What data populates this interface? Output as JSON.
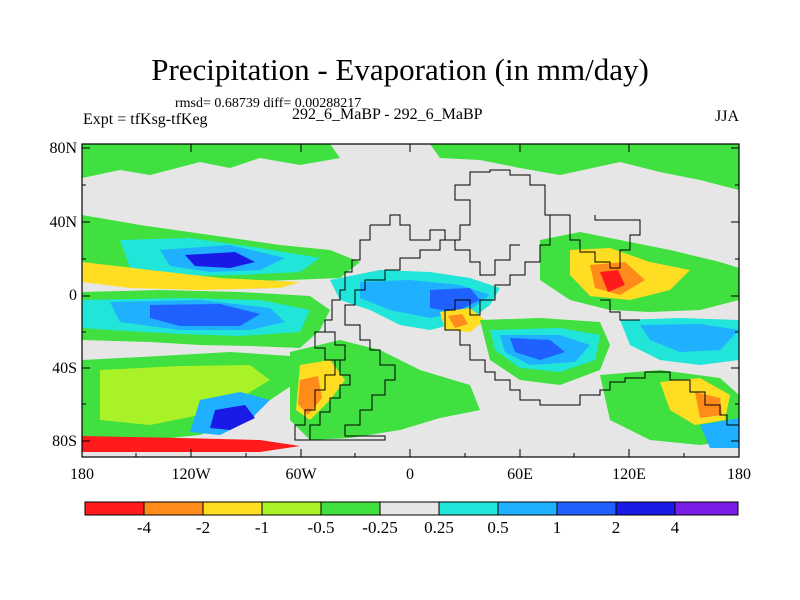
{
  "title": "Precipitation - Evaporation (in mm/day)",
  "stats": "rmsd= 0.68739 diff= 0.00288217",
  "experiment": "Expt = tfKsg-tfKeg",
  "case_label": "292_6_MaBP - 292_6_MaBP",
  "season": "JJA",
  "y_ticks": [
    "80N",
    "40N",
    "0",
    "40S",
    "80S"
  ],
  "x_ticks": [
    "180",
    "120W",
    "60W",
    "0",
    "60E",
    "120E",
    "180"
  ],
  "colorbar": {
    "labels": [
      "-4",
      "-2",
      "-1",
      "-0.5",
      "-0.25",
      "0.25",
      "0.5",
      "1",
      "2",
      "4"
    ],
    "colors": [
      "#ff1b1b",
      "#ff8c1a",
      "#ffdd22",
      "#a8f227",
      "#3fe03f",
      "#e6e6e6",
      "#21e5d9",
      "#1fb0ff",
      "#1f60ff",
      "#1a1ae6",
      "#7a1fe6"
    ]
  },
  "chart_data": {
    "type": "heatmap",
    "title": "Precipitation - Evaporation (in mm/day)",
    "units": "mm/day",
    "x_range_degrees": [
      -180,
      180
    ],
    "y_range_degrees": [
      -90,
      90
    ],
    "contour_levels": [
      -4,
      -2,
      -1,
      -0.5,
      -0.25,
      0.25,
      0.5,
      1,
      2,
      4
    ]
  }
}
